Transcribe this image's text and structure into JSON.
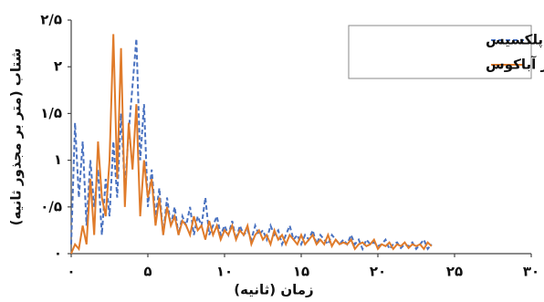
{
  "chart_data": {
    "type": "line",
    "x_label": "زمان (ثانیه)",
    "y_label": "شتاب (متر بر مجذور ثانیه)",
    "x": [
      0,
      0.25,
      0.5,
      0.75,
      1,
      1.25,
      1.5,
      1.75,
      2,
      2.25,
      2.5,
      2.75,
      3,
      3.25,
      3.5,
      3.75,
      4,
      4.25,
      4.5,
      4.75,
      5,
      5.25,
      5.5,
      5.75,
      6,
      6.25,
      6.5,
      6.75,
      7,
      7.25,
      7.5,
      7.75,
      8,
      8.25,
      8.5,
      8.75,
      9,
      9.25,
      9.5,
      9.75,
      10,
      10.25,
      10.5,
      10.75,
      11,
      11.25,
      11.5,
      11.75,
      12,
      12.25,
      12.5,
      12.75,
      13,
      13.25,
      13.5,
      13.75,
      14,
      14.25,
      14.5,
      14.75,
      15,
      15.25,
      15.5,
      15.75,
      16,
      16.25,
      16.5,
      16.75,
      17,
      17.25,
      17.5,
      17.75,
      18,
      18.25,
      18.5,
      18.75,
      19,
      19.25,
      19.5,
      19.75,
      20,
      20.25,
      20.5,
      20.75,
      21,
      21.25,
      21.5,
      21.75,
      22,
      22.25,
      22.5,
      22.75,
      23,
      23.25,
      23.5
    ],
    "series": [
      {
        "name": "نرم‌افزار پلکسیس",
        "color": "#4a72c0",
        "style": "dashed",
        "values": [
          0.1,
          1.4,
          0.6,
          1.2,
          0.3,
          1.0,
          0.5,
          0.9,
          0.2,
          0.8,
          0.4,
          1.2,
          0.6,
          1.5,
          0.7,
          1.3,
          1.8,
          2.3,
          1.0,
          1.6,
          0.5,
          0.9,
          0.4,
          0.7,
          0.2,
          0.6,
          0.3,
          0.5,
          0.2,
          0.4,
          0.3,
          0.5,
          0.2,
          0.4,
          0.3,
          0.6,
          0.2,
          0.3,
          0.4,
          0.2,
          0.3,
          0.2,
          0.35,
          0.15,
          0.3,
          0.2,
          0.25,
          0.15,
          0.3,
          0.2,
          0.25,
          0.15,
          0.3,
          0.2,
          0.25,
          0.1,
          0.2,
          0.3,
          0.15,
          0.2,
          0.1,
          0.2,
          0.15,
          0.25,
          0.1,
          0.2,
          0.15,
          0.1,
          0.2,
          0.15,
          0.1,
          0.15,
          0.1,
          0.2,
          0.1,
          0.15,
          0.05,
          0.15,
          0.1,
          0.12,
          0.08,
          0.1,
          0.15,
          0.05,
          0.1,
          0.12,
          0.06,
          0.1,
          0.08,
          0.12,
          0.05,
          0.1,
          0.15,
          0.05,
          0.1
        ]
      },
      {
        "name": "نرم‌افزار آباکوس",
        "color": "#e07b2a",
        "style": "solid",
        "values": [
          0,
          0.1,
          0.05,
          0.3,
          0.1,
          0.8,
          0.2,
          1.2,
          0.6,
          0.4,
          1.0,
          2.35,
          0.8,
          2.2,
          0.5,
          1.4,
          0.9,
          1.6,
          0.4,
          1.0,
          0.6,
          0.8,
          0.3,
          0.6,
          0.2,
          0.5,
          0.3,
          0.4,
          0.2,
          0.35,
          0.3,
          0.2,
          0.4,
          0.25,
          0.3,
          0.15,
          0.35,
          0.2,
          0.3,
          0.15,
          0.25,
          0.2,
          0.3,
          0.15,
          0.25,
          0.2,
          0.3,
          0.1,
          0.2,
          0.25,
          0.15,
          0.2,
          0.1,
          0.25,
          0.15,
          0.2,
          0.1,
          0.2,
          0.15,
          0.1,
          0.2,
          0.1,
          0.15,
          0.2,
          0.1,
          0.15,
          0.1,
          0.2,
          0.08,
          0.15,
          0.1,
          0.12,
          0.1,
          0.15,
          0.05,
          0.1,
          0.12,
          0.08,
          0.1,
          0.15,
          0.05,
          0.1,
          0.08,
          0.12,
          0.05,
          0.1,
          0.08,
          0.12,
          0.06,
          0.1,
          0.08,
          0.1,
          0.05,
          0.12,
          0.08
        ]
      }
    ],
    "xlim": [
      0,
      30
    ],
    "xticks": [
      {
        "value": 0,
        "label": "۰"
      },
      {
        "value": 5,
        "label": "۵"
      },
      {
        "value": 10,
        "label": "۱۰"
      },
      {
        "value": 15,
        "label": "۱۵"
      },
      {
        "value": 20,
        "label": "۲۰"
      },
      {
        "value": 25,
        "label": "۲۵"
      },
      {
        "value": 30,
        "label": "۳۰"
      }
    ],
    "ylim": [
      0,
      2.5
    ],
    "yticks": [
      {
        "value": 0,
        "label": "۰"
      },
      {
        "value": 0.5,
        "label": "۰/۵"
      },
      {
        "value": 1,
        "label": "۱"
      },
      {
        "value": 1.5,
        "label": "۱/۵"
      },
      {
        "value": 2,
        "label": "۲"
      },
      {
        "value": 2.5,
        "label": "۲/۵"
      }
    ],
    "legend": "upper right"
  }
}
